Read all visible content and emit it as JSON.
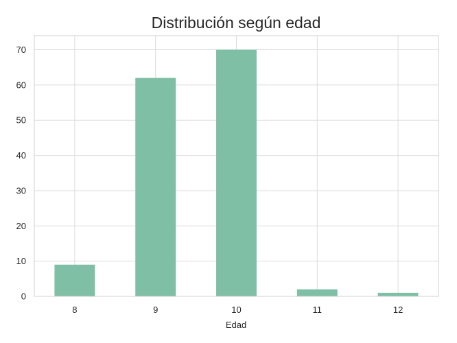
{
  "chart_data": {
    "type": "bar",
    "title": "Distribución según edad",
    "xlabel": "Edad",
    "ylabel": "",
    "categories": [
      "8",
      "9",
      "10",
      "11",
      "12"
    ],
    "values": [
      9,
      62,
      70,
      2,
      1
    ],
    "ylim": [
      0,
      74
    ],
    "yticks": [
      0,
      10,
      20,
      30,
      40,
      50,
      60,
      70
    ],
    "grid": true,
    "legend": "none",
    "colors": {
      "bar": "#7fbfa5",
      "grid": "#dcdcdc",
      "text": "#262626"
    }
  }
}
